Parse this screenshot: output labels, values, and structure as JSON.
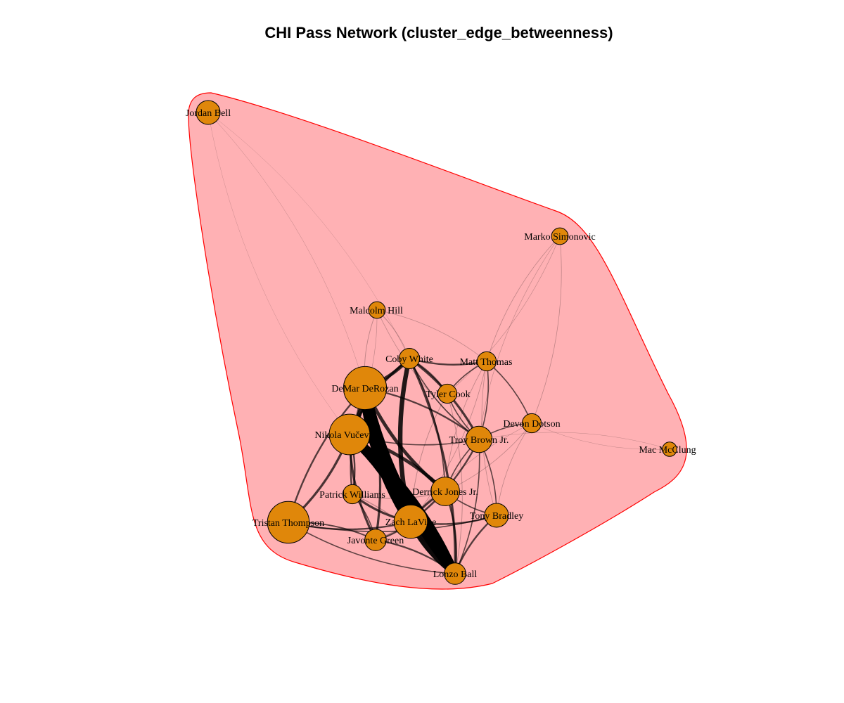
{
  "title": "CHI Pass Network (cluster_edge_betweenness)",
  "colors": {
    "node_fill": "#E0870A",
    "node_stroke": "#000000",
    "cluster_fill": "#FFB1B4",
    "cluster_stroke": "#FF0000",
    "edge": "#000000"
  },
  "nodes": [
    {
      "id": "bell",
      "label": "Jordan Bell",
      "size": 1.0
    },
    {
      "id": "simonovic",
      "label": "Marko Simonovic",
      "size": 0.7
    },
    {
      "id": "hill",
      "label": "Malcolm Hill",
      "size": 0.7
    },
    {
      "id": "white",
      "label": "Coby White",
      "size": 0.85
    },
    {
      "id": "thomas",
      "label": "Matt Thomas",
      "size": 0.8
    },
    {
      "id": "derozan",
      "label": "DeMar DeRozan",
      "size": 1.8
    },
    {
      "id": "cook",
      "label": "Tyler Cook",
      "size": 0.8
    },
    {
      "id": "vucevic",
      "label": "Nikola Vučević",
      "size": 1.7
    },
    {
      "id": "dotson",
      "label": "Devon Dotson",
      "size": 0.8
    },
    {
      "id": "brown",
      "label": "Troy Brown Jr.",
      "size": 1.1
    },
    {
      "id": "mcclung",
      "label": "Mac McClung",
      "size": 0.6
    },
    {
      "id": "williams",
      "label": "Patrick Williams",
      "size": 0.8
    },
    {
      "id": "jones",
      "label": "Derrick Jones Jr.",
      "size": 1.2
    },
    {
      "id": "thompson",
      "label": "Tristan Thompson",
      "size": 1.75
    },
    {
      "id": "lavine",
      "label": "Zach LaVine",
      "size": 1.4
    },
    {
      "id": "bradley",
      "label": "Tony Bradley",
      "size": 1.0
    },
    {
      "id": "green",
      "label": "Javonte Green",
      "size": 0.9
    },
    {
      "id": "ball",
      "label": "Lonzo Ball",
      "size": 0.9
    }
  ],
  "edges": [
    [
      "derozan",
      "lavine",
      10
    ],
    [
      "vucevic",
      "lavine",
      9
    ],
    [
      "derozan",
      "ball",
      8
    ],
    [
      "vucevic",
      "ball",
      7
    ],
    [
      "lavine",
      "ball",
      5
    ],
    [
      "derozan",
      "vucevic",
      4
    ],
    [
      "white",
      "lavine",
      4
    ],
    [
      "white",
      "derozan",
      3
    ],
    [
      "derozan",
      "jones",
      3
    ],
    [
      "vucevic",
      "jones",
      3
    ],
    [
      "vucevic",
      "green",
      2
    ],
    [
      "derozan",
      "green",
      2
    ],
    [
      "thompson",
      "vucevic",
      2
    ],
    [
      "thompson",
      "derozan",
      1.5
    ],
    [
      "thompson",
      "lavine",
      1.5
    ],
    [
      "thompson",
      "green",
      1.2
    ],
    [
      "williams",
      "lavine",
      2
    ],
    [
      "williams",
      "derozan",
      1.5
    ],
    [
      "williams",
      "vucevic",
      1.5
    ],
    [
      "williams",
      "green",
      1
    ],
    [
      "jones",
      "lavine",
      2
    ],
    [
      "jones",
      "ball",
      1.5
    ],
    [
      "brown",
      "white",
      2
    ],
    [
      "brown",
      "lavine",
      1.5
    ],
    [
      "brown",
      "derozan",
      1.5
    ],
    [
      "brown",
      "vucevic",
      1
    ],
    [
      "brown",
      "jones",
      1
    ],
    [
      "brown",
      "ball",
      1
    ],
    [
      "white",
      "vucevic",
      2
    ],
    [
      "white",
      "ball",
      2
    ],
    [
      "white",
      "thomas",
      1.5
    ],
    [
      "white",
      "cook",
      1.5
    ],
    [
      "white",
      "brown",
      1
    ],
    [
      "white",
      "jones",
      1
    ],
    [
      "thomas",
      "cook",
      1
    ],
    [
      "thomas",
      "brown",
      1
    ],
    [
      "cook",
      "brown",
      1
    ],
    [
      "thomas",
      "dotson",
      1
    ],
    [
      "dotson",
      "brown",
      1
    ],
    [
      "bradley",
      "lavine",
      1.5
    ],
    [
      "bradley",
      "ball",
      1.5
    ],
    [
      "bradley",
      "jones",
      1
    ],
    [
      "bradley",
      "brown",
      1
    ],
    [
      "bradley",
      "thompson",
      1
    ],
    [
      "green",
      "lavine",
      1.5
    ],
    [
      "green",
      "ball",
      1.5
    ],
    [
      "thompson",
      "ball",
      1
    ],
    [
      "hill",
      "white",
      0.6
    ],
    [
      "hill",
      "derozan",
      0.6
    ],
    [
      "hill",
      "thomas",
      0.5
    ],
    [
      "hill",
      "brown",
      0.5
    ],
    [
      "hill",
      "vucevic",
      0.4
    ],
    [
      "simonovic",
      "thomas",
      0.5
    ],
    [
      "simonovic",
      "dotson",
      0.5
    ],
    [
      "simonovic",
      "brown",
      0.4
    ],
    [
      "simonovic",
      "cook",
      0.4
    ],
    [
      "dotson",
      "bradley",
      0.5
    ],
    [
      "dotson",
      "jones",
      0.5
    ],
    [
      "dotson",
      "lavine",
      0.4
    ],
    [
      "mcclung",
      "dotson",
      0.3
    ],
    [
      "mcclung",
      "brown",
      0.3
    ],
    [
      "bell",
      "derozan",
      0.3
    ],
    [
      "bell",
      "vucevic",
      0.2
    ],
    [
      "bell",
      "white",
      0.2
    ],
    [
      "thomas",
      "jones",
      0.5
    ],
    [
      "thomas",
      "lavine",
      0.5
    ],
    [
      "cook",
      "lavine",
      0.6
    ],
    [
      "cook",
      "ball",
      0.6
    ],
    [
      "thomas",
      "bradley",
      0.5
    ],
    [
      "jones",
      "green",
      0.8
    ],
    [
      "williams",
      "jones",
      0.8
    ],
    [
      "williams",
      "ball",
      0.8
    ]
  ]
}
